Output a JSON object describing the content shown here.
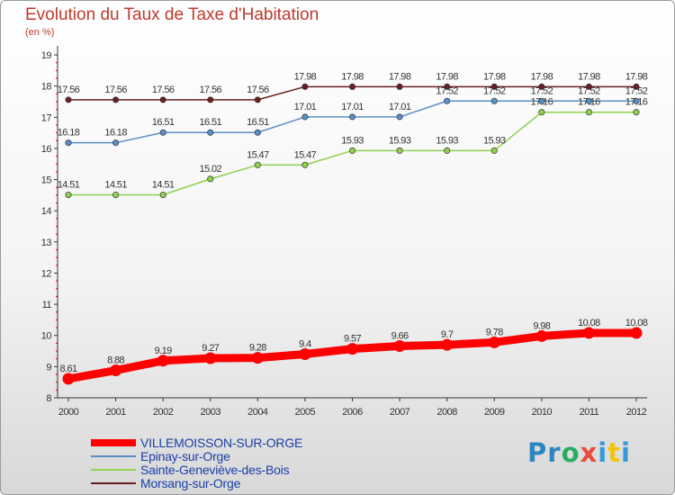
{
  "title": "Evolution du Taux de Taxe d'Habitation",
  "subtitle": "(en %)",
  "logo": {
    "parts": [
      "Pr",
      "o",
      "x",
      "i",
      "t",
      "i"
    ]
  },
  "chart_data": {
    "type": "line",
    "x": [
      "2000",
      "2001",
      "2002",
      "2003",
      "2004",
      "2005",
      "2006",
      "2007",
      "2008",
      "2009",
      "2010",
      "2011",
      "2012"
    ],
    "ylim": [
      8,
      19
    ],
    "yticks": [
      "8",
      "9",
      "10",
      "11",
      "12",
      "13",
      "14",
      "15",
      "16",
      "17",
      "18",
      "19"
    ],
    "grid": false,
    "legend_position": "bottom-left",
    "series": [
      {
        "name": "Morsang-sur-Orge",
        "color": "#6b1f1f",
        "width": 1.5,
        "values": [
          17.56,
          17.56,
          17.56,
          17.56,
          17.56,
          17.98,
          17.98,
          17.98,
          17.98,
          17.98,
          17.98,
          17.98,
          17.98
        ],
        "labels": [
          "17.56",
          "17.56",
          "17.56",
          "17.56",
          "17.56",
          "17.98",
          "17.98",
          "17.98",
          "17.98",
          "17.98",
          "17.98",
          "17.98",
          "17.98"
        ]
      },
      {
        "name": "Epinay-sur-Orge",
        "color": "#5a8fc8",
        "width": 1.5,
        "values": [
          16.18,
          16.18,
          16.51,
          16.51,
          16.51,
          17.01,
          17.01,
          17.01,
          17.52,
          17.52,
          17.52,
          17.52,
          17.52
        ],
        "labels": [
          "16.18",
          "16.18",
          "16.51",
          "16.51",
          "16.51",
          "17.01",
          "17.01",
          "17.01",
          "17.52",
          "17.52",
          "17.52",
          "17.52",
          "17.52"
        ]
      },
      {
        "name": "Sainte-Geneviève-des-Bois",
        "color": "#8fd14f",
        "width": 1.5,
        "values": [
          14.51,
          14.51,
          14.51,
          15.02,
          15.47,
          15.47,
          15.93,
          15.93,
          15.93,
          15.93,
          17.16,
          17.16,
          17.16
        ],
        "labels": [
          "14.51",
          "14.51",
          "14.51",
          "15.02",
          "15.47",
          "15.47",
          "15.93",
          "15.93",
          "15.93",
          "15.93",
          "17.16",
          "17.16",
          "17.16"
        ]
      },
      {
        "name": "VILLEMOISSON-SUR-ORGE",
        "color": "#ff0000",
        "width": 9,
        "values": [
          8.61,
          8.88,
          9.19,
          9.27,
          9.28,
          9.4,
          9.57,
          9.66,
          9.7,
          9.78,
          9.98,
          10.08,
          10.08
        ],
        "labels": [
          "8.61",
          "8.88",
          "9.19",
          "9.27",
          "9.28",
          "9.4",
          "9.57",
          "9.66",
          "9.7",
          "9.78",
          "9.98",
          "10.08",
          "10.08"
        ]
      }
    ]
  }
}
